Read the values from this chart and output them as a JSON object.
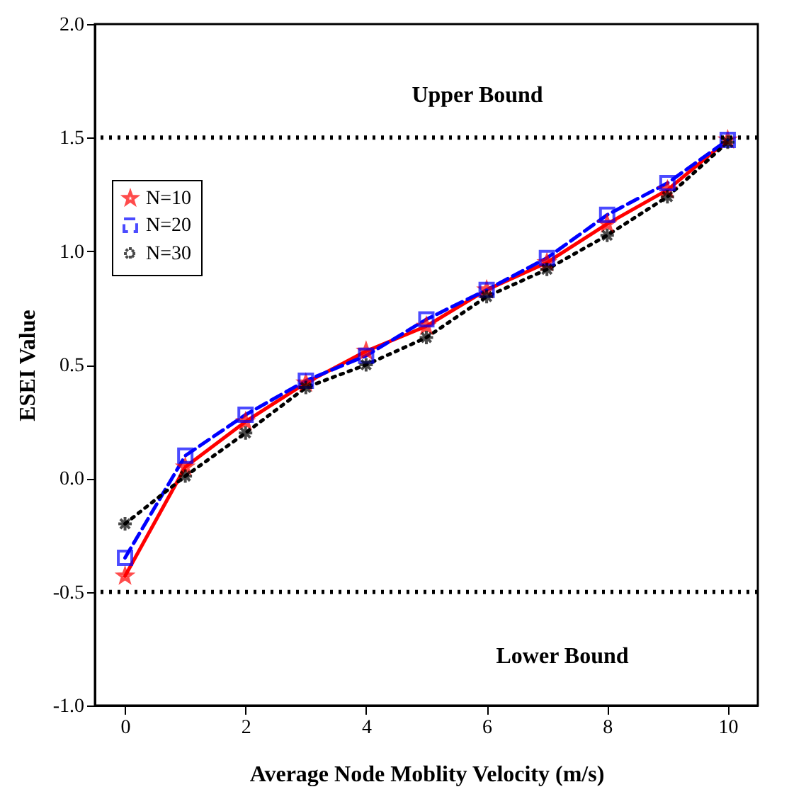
{
  "chart_data": {
    "type": "line",
    "xlabel": "Average Node Moblity Velocity (m/s)",
    "ylabel": "ESEI Value",
    "x": [
      0,
      1,
      2,
      3,
      4,
      5,
      6,
      7,
      8,
      9,
      10
    ],
    "series": [
      {
        "name": "N=10",
        "color": "#ff0000",
        "marker": "star",
        "line_style": "solid",
        "values": [
          -0.43,
          0.05,
          0.25,
          0.42,
          0.56,
          0.67,
          0.83,
          0.95,
          1.12,
          1.27,
          1.49
        ]
      },
      {
        "name": "N=20",
        "color": "#0000ff",
        "marker": "square",
        "line_style": "dashed",
        "values": [
          -0.35,
          0.1,
          0.28,
          0.43,
          0.54,
          0.7,
          0.83,
          0.97,
          1.16,
          1.3,
          1.49
        ]
      },
      {
        "name": "N=30",
        "color": "#000000",
        "marker": "cross",
        "line_style": "dotted",
        "values": [
          -0.2,
          0.01,
          0.2,
          0.4,
          0.5,
          0.62,
          0.8,
          0.92,
          1.07,
          1.24,
          1.48
        ]
      }
    ],
    "xlim": [
      -0.5,
      10.5
    ],
    "xticks": [
      0,
      2,
      4,
      6,
      8,
      10
    ],
    "ylim": [
      -1.0,
      2.0
    ],
    "yticks": [
      {
        "value": -1,
        "label": "-1.0"
      },
      {
        "value": -0.5,
        "label": "-0.5"
      },
      {
        "value": 0,
        "label": "0.0"
      },
      {
        "value": 0.5,
        "label": "0.5"
      },
      {
        "value": 1,
        "label": "1.0"
      },
      {
        "value": 1.5,
        "label": "1.5"
      },
      {
        "value": 2,
        "label": "2.0"
      }
    ],
    "ref_lines": [
      {
        "axis": "y",
        "value": 1.5,
        "label": "Upper Bound",
        "color": "#000000",
        "line_style": "dotted"
      },
      {
        "axis": "y",
        "value": -0.5,
        "label": "Lower Bound",
        "color": "#000000",
        "line_style": "dotted"
      }
    ],
    "legend": "top left",
    "grid": false
  }
}
